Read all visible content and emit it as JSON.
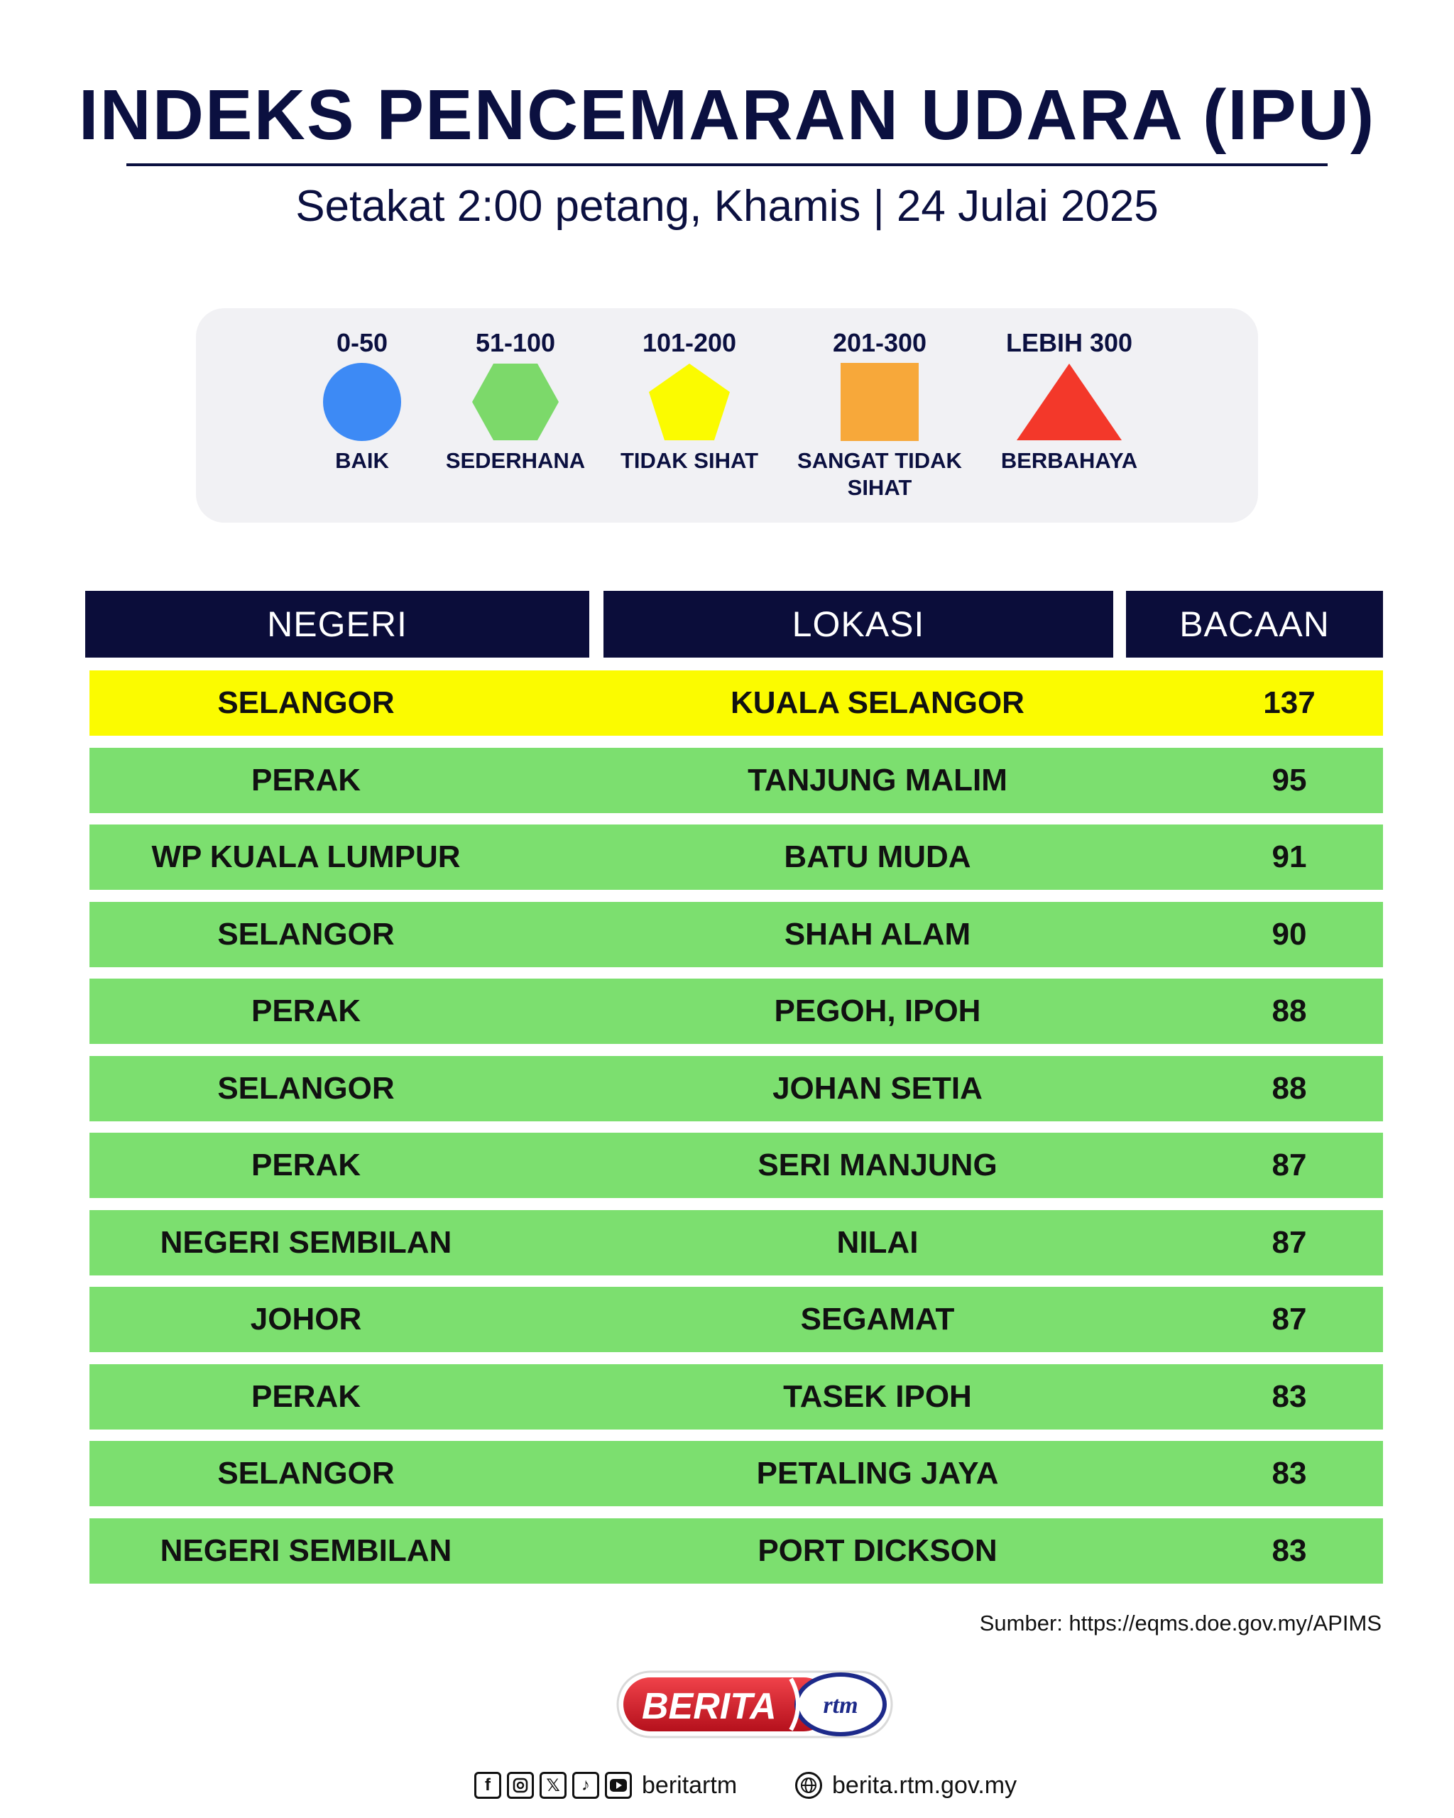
{
  "title": "INDEKS PENCEMARAN UDARA (IPU)",
  "subtitle": "Setakat 2:00 petang, Khamis | 24 Julai 2025",
  "legend": [
    {
      "range": "0-50",
      "label": "BAIK",
      "shape": "circle",
      "color": "#3d8af5"
    },
    {
      "range": "51-100",
      "label": "SEDERHANA",
      "shape": "hexagon",
      "color": "#7cd96a"
    },
    {
      "range": "101-200",
      "label": "TIDAK SIHAT",
      "shape": "pentagon",
      "color": "#fbfb00"
    },
    {
      "range": "201-300",
      "label": "SANGAT TIDAK SIHAT",
      "shape": "square",
      "color": "#f7a83a"
    },
    {
      "range": "LEBIH 300",
      "label": "BERBAHAYA",
      "shape": "triangle",
      "color": "#f3382a"
    }
  ],
  "table": {
    "headers": [
      "NEGERI",
      "LOKASI",
      "BACAAN"
    ],
    "rows": [
      {
        "negeri": "SELANGOR",
        "lokasi": "KUALA SELANGOR",
        "bacaan": "137",
        "color": "#fbfb00"
      },
      {
        "negeri": "PERAK",
        "lokasi": "TANJUNG MALIM",
        "bacaan": "95",
        "color": "#7cdf6f"
      },
      {
        "negeri": "WP KUALA LUMPUR",
        "lokasi": "BATU MUDA",
        "bacaan": "91",
        "color": "#7cdf6f"
      },
      {
        "negeri": "SELANGOR",
        "lokasi": "SHAH ALAM",
        "bacaan": "90",
        "color": "#7cdf6f"
      },
      {
        "negeri": "PERAK",
        "lokasi": "PEGOH, IPOH",
        "bacaan": "88",
        "color": "#7cdf6f"
      },
      {
        "negeri": "SELANGOR",
        "lokasi": "JOHAN SETIA",
        "bacaan": "88",
        "color": "#7cdf6f"
      },
      {
        "negeri": "PERAK",
        "lokasi": "SERI MANJUNG",
        "bacaan": "87",
        "color": "#7cdf6f"
      },
      {
        "negeri": "NEGERI SEMBILAN",
        "lokasi": "NILAI",
        "bacaan": "87",
        "color": "#7cdf6f"
      },
      {
        "negeri": "JOHOR",
        "lokasi": "SEGAMAT",
        "bacaan": "87",
        "color": "#7cdf6f"
      },
      {
        "negeri": "PERAK",
        "lokasi": "TASEK IPOH",
        "bacaan": "83",
        "color": "#7cdf6f"
      },
      {
        "negeri": "SELANGOR",
        "lokasi": "PETALING JAYA",
        "bacaan": "83",
        "color": "#7cdf6f"
      },
      {
        "negeri": "NEGERI SEMBILAN",
        "lokasi": "PORT DICKSON",
        "bacaan": "83",
        "color": "#7cdf6f"
      }
    ]
  },
  "source": "Sumber: https://eqms.doe.gov.my/APIMS",
  "logo": {
    "text": "BERITA",
    "mark": "rtm"
  },
  "footer": {
    "social_icons": [
      "facebook-icon",
      "instagram-icon",
      "x-icon",
      "tiktok-icon",
      "youtube-icon"
    ],
    "handle": "beritartm",
    "website": "berita.rtm.gov.my"
  }
}
